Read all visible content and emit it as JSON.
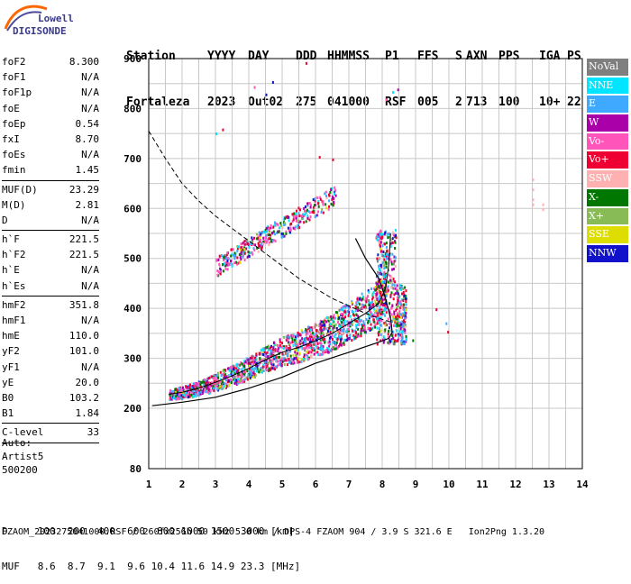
{
  "logo": {
    "line1": "Lowell",
    "line2": "DIGISONDE"
  },
  "header": {
    "line1": [
      "Station",
      "YYYY",
      "DAY",
      "DDD",
      "HHMMSS",
      "P1",
      "FFS",
      "S",
      "AXN",
      "PPS",
      "IGA",
      "PS"
    ],
    "line2": [
      "Fortaleza",
      "2023",
      "Out02",
      "275",
      "041000",
      "RSF",
      "005",
      "2",
      "713",
      "100",
      "10+",
      "22"
    ]
  },
  "params": [
    {
      "label": "foF2",
      "value": "8.300"
    },
    {
      "label": "foF1",
      "value": "N/A"
    },
    {
      "label": "foF1p",
      "value": "N/A"
    },
    {
      "label": "foE",
      "value": "N/A"
    },
    {
      "label": "foEp",
      "value": "0.54"
    },
    {
      "label": "fxI",
      "value": "8.70"
    },
    {
      "label": "foEs",
      "value": "N/A"
    },
    {
      "label": "fmin",
      "value": "1.45"
    },
    {
      "sep": true
    },
    {
      "label": "MUF(D)",
      "value": "23.29"
    },
    {
      "label": "M(D)",
      "value": "2.81"
    },
    {
      "label": "D",
      "value": "N/A"
    },
    {
      "sep": true
    },
    {
      "label": "h`F",
      "value": "221.5"
    },
    {
      "label": "h`F2",
      "value": "221.5"
    },
    {
      "label": "h`E",
      "value": "N/A"
    },
    {
      "label": "h`Es",
      "value": "N/A"
    },
    {
      "sep": true
    },
    {
      "label": "hmF2",
      "value": "351.8"
    },
    {
      "label": "hmF1",
      "value": "N/A"
    },
    {
      "label": "hmE",
      "value": "110.0"
    },
    {
      "label": "yF2",
      "value": "101.0"
    },
    {
      "label": "yF1",
      "value": "N/A"
    },
    {
      "label": "yE",
      "value": "20.0"
    },
    {
      "label": "B0",
      "value": "103.2"
    },
    {
      "label": "B1",
      "value": "1.84"
    },
    {
      "sep": true
    },
    {
      "label": "C-level",
      "value": "33"
    },
    {
      "sep": true
    }
  ],
  "auto": {
    "line1": "Auto:",
    "line2": "Artist5",
    "line3": "500200"
  },
  "legend": [
    {
      "label": "NoVal",
      "color": "#7f7f7f"
    },
    {
      "label": "NNE",
      "color": "#00e5ff"
    },
    {
      "label": "E",
      "color": "#3fa9ff"
    },
    {
      "label": "W",
      "color": "#aa00aa"
    },
    {
      "label": "Vo-",
      "color": "#ff55bb"
    },
    {
      "label": "Vo+",
      "color": "#ee0033"
    },
    {
      "label": "SSW",
      "color": "#ffb0b0"
    },
    {
      "label": "X-",
      "color": "#007700"
    },
    {
      "label": "X+",
      "color": "#88bb55"
    },
    {
      "label": "SSE",
      "color": "#dddd00"
    },
    {
      "label": "NNW",
      "color": "#1111cc"
    }
  ],
  "muf_table": {
    "row1_label": "D",
    "distances": [
      "100",
      "200",
      "400",
      "600",
      "800",
      "1000",
      "1500",
      "3000"
    ],
    "row1_unit": "[km]",
    "row2_label": "MUF",
    "mufs": [
      "8.6",
      "8.7",
      "9.1",
      "9.6",
      "10.4",
      "11.6",
      "14.9",
      "23.3"
    ],
    "row2_unit": "[MHz]"
  },
  "footer": "FZAOM_2023275041000.RSF / 260fx256h 50 kHz 5.0 km / DPS-4 FZAOM 904 / 3.9 S 321.6 E   Ion2Png 1.3.20",
  "chart_data": {
    "type": "scatter",
    "x_ticks": [
      1,
      2,
      3,
      4,
      5,
      6,
      7,
      8,
      9,
      10,
      11,
      12,
      13,
      14
    ],
    "y_ticks": [
      80,
      200,
      300,
      400,
      500,
      600,
      700,
      800,
      900
    ],
    "xlim": [
      1,
      14
    ],
    "ylim": [
      80,
      900
    ],
    "grid": true,
    "profile_curve": [
      [
        1.1,
        205
      ],
      [
        2,
        212
      ],
      [
        3,
        222
      ],
      [
        4,
        240
      ],
      [
        5,
        262
      ],
      [
        6,
        290
      ],
      [
        7,
        312
      ],
      [
        7.8,
        330
      ],
      [
        8.2,
        340
      ],
      [
        8.3,
        352
      ],
      [
        8.25,
        380
      ],
      [
        8.1,
        420
      ],
      [
        7.9,
        460
      ],
      [
        7.5,
        500
      ],
      [
        7.2,
        540
      ]
    ],
    "trace_o": [
      [
        1.6,
        228
      ],
      [
        2,
        232
      ],
      [
        2.5,
        240
      ],
      [
        3,
        252
      ],
      [
        3.5,
        265
      ],
      [
        4,
        280
      ],
      [
        4.5,
        297
      ],
      [
        5,
        312
      ],
      [
        5.5,
        322
      ],
      [
        6,
        335
      ],
      [
        6.5,
        350
      ],
      [
        7,
        370
      ],
      [
        7.5,
        390
      ],
      [
        7.9,
        410
      ],
      [
        8.1,
        440
      ],
      [
        8.2,
        490
      ],
      [
        8.25,
        550
      ]
    ],
    "muf_dashed_curve": [
      [
        1,
        755
      ],
      [
        1.5,
        700
      ],
      [
        2,
        650
      ],
      [
        2.5,
        615
      ],
      [
        3,
        585
      ],
      [
        3.5,
        560
      ],
      [
        4,
        535
      ],
      [
        4.5,
        510
      ],
      [
        5,
        485
      ],
      [
        5.5,
        460
      ],
      [
        6,
        440
      ],
      [
        6.5,
        420
      ],
      [
        7,
        405
      ],
      [
        7.5,
        390
      ],
      [
        8,
        378
      ],
      [
        8.3,
        372
      ]
    ]
  }
}
